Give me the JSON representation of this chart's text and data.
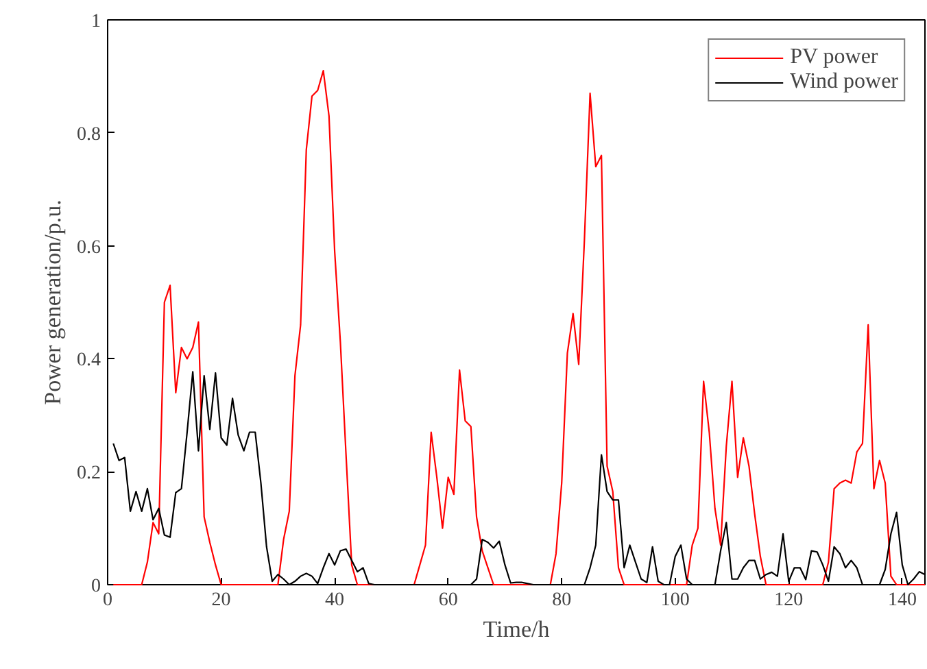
{
  "chart_data": {
    "type": "line",
    "xlabel": "Time/h",
    "ylabel": "Power generation/p.u.",
    "x": [
      1,
      2,
      3,
      4,
      5,
      6,
      7,
      8,
      9,
      10,
      11,
      12,
      13,
      14,
      15,
      16,
      17,
      18,
      19,
      20,
      21,
      22,
      23,
      24,
      25,
      26,
      27,
      28,
      29,
      30,
      31,
      32,
      33,
      34,
      35,
      36,
      37,
      38,
      39,
      40,
      41,
      42,
      43,
      44,
      45,
      46,
      47,
      48,
      49,
      50,
      51,
      52,
      53,
      54,
      55,
      56,
      57,
      58,
      59,
      60,
      61,
      62,
      63,
      64,
      65,
      66,
      67,
      68,
      69,
      70,
      71,
      72,
      73,
      74,
      75,
      76,
      77,
      78,
      79,
      80,
      81,
      82,
      83,
      84,
      85,
      86,
      87,
      88,
      89,
      90,
      91,
      92,
      93,
      94,
      95,
      96,
      97,
      98,
      99,
      100,
      101,
      102,
      103,
      104,
      105,
      106,
      107,
      108,
      109,
      110,
      111,
      112,
      113,
      114,
      115,
      116,
      117,
      118,
      119,
      120,
      121,
      122,
      123,
      124,
      125,
      126,
      127,
      128,
      129,
      130,
      131,
      132,
      133,
      134,
      135,
      136,
      137,
      138,
      139,
      140,
      141,
      142,
      143,
      144
    ],
    "series": [
      {
        "name": "PV power",
        "color": "#ff0000",
        "values": [
          0,
          0,
          0,
          0,
          0,
          0,
          0.04,
          0.11,
          0.09,
          0.5,
          0.53,
          0.34,
          0.42,
          0.4,
          0.42,
          0.465,
          0.12,
          0.075,
          0.035,
          0,
          0,
          0,
          0,
          0,
          0,
          0,
          0,
          0,
          0,
          0,
          0.08,
          0.13,
          0.37,
          0.46,
          0.77,
          0.865,
          0.875,
          0.91,
          0.83,
          0.59,
          0.43,
          0.23,
          0.035,
          0,
          0,
          0,
          0,
          0,
          0,
          0,
          0,
          0,
          0,
          0,
          0.035,
          0.07,
          0.27,
          0.19,
          0.1,
          0.19,
          0.16,
          0.38,
          0.29,
          0.28,
          0.12,
          0.06,
          0.03,
          0,
          0,
          0,
          0,
          0,
          0,
          0,
          0,
          0,
          0,
          0,
          0.055,
          0.18,
          0.41,
          0.48,
          0.39,
          0.61,
          0.87,
          0.74,
          0.76,
          0.21,
          0.165,
          0.03,
          0,
          0,
          0,
          0,
          0,
          0,
          0,
          0,
          0,
          0,
          0,
          0,
          0.07,
          0.1,
          0.36,
          0.27,
          0.135,
          0.07,
          0.245,
          0.36,
          0.19,
          0.26,
          0.21,
          0.125,
          0.05,
          0,
          0,
          0,
          0,
          0,
          0,
          0,
          0,
          0,
          0,
          0,
          0.04,
          0.17,
          0.18,
          0.185,
          0.18,
          0.235,
          0.25,
          0.46,
          0.17,
          0.22,
          0.18,
          0.015,
          0,
          0,
          0,
          0,
          0,
          0
        ]
      },
      {
        "name": "Wind power",
        "color": "#000000",
        "values": [
          0.25,
          0.22,
          0.225,
          0.13,
          0.165,
          0.13,
          0.17,
          0.115,
          0.135,
          0.088,
          0.084,
          0.163,
          0.17,
          0.27,
          0.377,
          0.237,
          0.37,
          0.275,
          0.375,
          0.26,
          0.247,
          0.33,
          0.265,
          0.237,
          0.27,
          0.27,
          0.18,
          0.067,
          0.006,
          0.018,
          0.01,
          0,
          0.006,
          0.015,
          0.02,
          0.015,
          0.002,
          0.03,
          0.055,
          0.035,
          0.06,
          0.063,
          0.043,
          0.023,
          0.03,
          0.002,
          0,
          0,
          0,
          0,
          0,
          0,
          0,
          0,
          0,
          0,
          0,
          0,
          0,
          0,
          0,
          0,
          0,
          0,
          0.01,
          0.08,
          0.075,
          0.065,
          0.077,
          0.035,
          0.003,
          0.004,
          0.004,
          0.002,
          0,
          0,
          0,
          0,
          0,
          0,
          0,
          0,
          0,
          0,
          0.03,
          0.07,
          0.23,
          0.165,
          0.15,
          0.15,
          0.03,
          0.07,
          0.04,
          0.01,
          0.004,
          0.067,
          0.006,
          0,
          0,
          0.05,
          0.07,
          0.01,
          0,
          0,
          0,
          0,
          0,
          0.06,
          0.11,
          0.01,
          0.01,
          0.03,
          0.043,
          0.043,
          0.01,
          0.018,
          0.022,
          0.015,
          0.09,
          0.006,
          0.03,
          0.03,
          0.009,
          0.06,
          0.058,
          0.035,
          0.006,
          0.067,
          0.055,
          0.03,
          0.043,
          0.03,
          0,
          0,
          0,
          0,
          0.027,
          0.09,
          0.128,
          0.035,
          0,
          0.01,
          0.023,
          0.018
        ]
      }
    ],
    "xlim": [
      0,
      144
    ],
    "ylim": [
      0,
      1
    ],
    "xticks": [
      0,
      20,
      40,
      60,
      80,
      100,
      120,
      140
    ],
    "yticks": [
      0,
      0.2,
      0.4,
      0.6,
      0.8,
      1
    ],
    "grid": false,
    "legend": "top right",
    "marker": "none",
    "line_style": "solid"
  }
}
